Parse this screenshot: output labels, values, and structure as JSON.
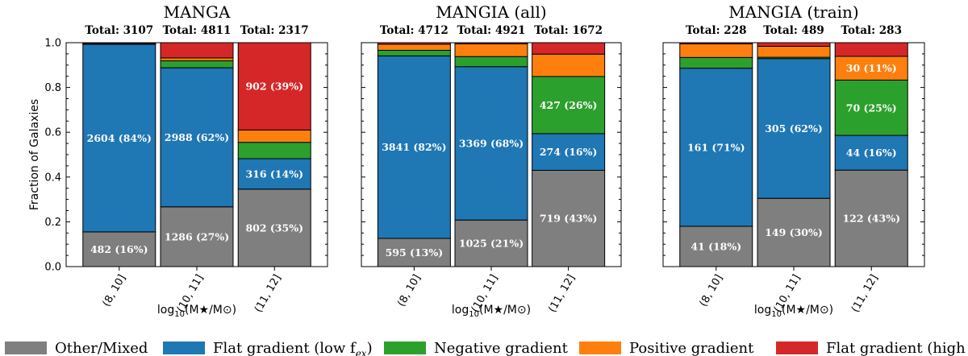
{
  "chart_data": [
    {
      "type": "bar",
      "stacked": true,
      "title": "MANGA",
      "ylabel": "Fraction of Galaxies",
      "xlabel": "log10(M★/M⊙)",
      "ylim": [
        0,
        1
      ],
      "yticks": [
        "0.0",
        "0.2",
        "0.4",
        "0.6",
        "0.8",
        "1.0"
      ],
      "categories": [
        "(8, 10]",
        "(10, 11]",
        "(11, 12]"
      ],
      "totals": [
        "Total: 3107",
        "Total: 4811",
        "Total: 2317"
      ],
      "series": [
        {
          "name": "Other/Mixed",
          "values": [
            0.155,
            0.267,
            0.346
          ],
          "labels": [
            "482 (16%)",
            "1286 (27%)",
            "802 (35%)"
          ]
        },
        {
          "name": "Flat gradient (low f_ex)",
          "values": [
            0.838,
            0.621,
            0.136
          ],
          "labels": [
            "2604 (84%)",
            "2988 (62%)",
            "316 (14%)"
          ]
        },
        {
          "name": "Negative gradient",
          "values": [
            0.002,
            0.031,
            0.073
          ],
          "labels": [
            "",
            "",
            ""
          ]
        },
        {
          "name": "Positive gradient",
          "values": [
            0.001,
            0.013,
            0.055
          ],
          "labels": [
            "",
            "",
            ""
          ]
        },
        {
          "name": "Flat gradient (high f_ex)",
          "values": [
            0.004,
            0.068,
            0.39
          ],
          "labels": [
            "",
            "",
            "902 (39%)"
          ]
        }
      ]
    },
    {
      "type": "bar",
      "stacked": true,
      "title": "MANGIA (all)",
      "xlabel": "log10(M★/M⊙)",
      "ylim": [
        0,
        1
      ],
      "categories": [
        "(8, 10]",
        "(10, 11]",
        "(11, 12]"
      ],
      "totals": [
        "Total: 4712",
        "Total: 4921",
        "Total: 1672"
      ],
      "series": [
        {
          "name": "Other/Mixed",
          "values": [
            0.126,
            0.208,
            0.43
          ],
          "labels": [
            "595 (13%)",
            "1025 (21%)",
            "719 (43%)"
          ]
        },
        {
          "name": "Flat gradient (low f_ex)",
          "values": [
            0.815,
            0.685,
            0.164
          ],
          "labels": [
            "3841 (82%)",
            "3369 (68%)",
            "274 (16%)"
          ]
        },
        {
          "name": "Negative gradient",
          "values": [
            0.025,
            0.045,
            0.255
          ],
          "labels": [
            "",
            "",
            "427 (26%)"
          ]
        },
        {
          "name": "Positive gradient",
          "values": [
            0.027,
            0.057,
            0.1
          ],
          "labels": [
            "",
            "",
            ""
          ]
        },
        {
          "name": "Flat gradient (high f_ex)",
          "values": [
            0.007,
            0.005,
            0.051
          ],
          "labels": [
            "",
            "",
            ""
          ]
        }
      ]
    },
    {
      "type": "bar",
      "stacked": true,
      "title": "MANGIA (train)",
      "xlabel": "log10(M★/M⊙)",
      "ylim": [
        0,
        1
      ],
      "categories": [
        "(8, 10]",
        "(10, 11]",
        "(11, 12]"
      ],
      "totals": [
        "Total: 228",
        "Total: 489",
        "Total: 283"
      ],
      "series": [
        {
          "name": "Other/Mixed",
          "values": [
            0.18,
            0.305,
            0.431
          ],
          "labels": [
            "41 (18%)",
            "149 (30%)",
            "122 (43%)"
          ]
        },
        {
          "name": "Flat gradient (low f_ex)",
          "values": [
            0.706,
            0.624,
            0.155
          ],
          "labels": [
            "161 (71%)",
            "305 (62%)",
            "44 (16%)"
          ]
        },
        {
          "name": "Negative gradient",
          "values": [
            0.048,
            0.006,
            0.247
          ],
          "labels": [
            "",
            "",
            "70 (25%)"
          ]
        },
        {
          "name": "Positive gradient",
          "values": [
            0.061,
            0.049,
            0.106
          ],
          "labels": [
            "",
            "",
            "30 (11%)"
          ]
        },
        {
          "name": "Flat gradient (high f_ex)",
          "values": [
            0.005,
            0.016,
            0.061
          ],
          "labels": [
            "",
            "",
            ""
          ]
        }
      ]
    }
  ],
  "legend": [
    {
      "name": "Other/Mixed",
      "color": "#7f7f7f",
      "label": "Other/Mixed",
      "sub": ""
    },
    {
      "name": "Flat gradient (low f_ex)",
      "color": "#1f77b4",
      "label": "Flat gradient (low f",
      "sub": "ex",
      "close": ")"
    },
    {
      "name": "Negative gradient",
      "color": "#2ca02c",
      "label": "Negative gradient",
      "sub": ""
    },
    {
      "name": "Positive gradient",
      "color": "#ff7f0e",
      "label": "Positive gradient",
      "sub": ""
    },
    {
      "name": "Flat gradient (high f_ex)",
      "color": "#d62728",
      "label": "Flat gradient (high f",
      "sub": "ex",
      "close": ")"
    }
  ],
  "colors": [
    "#7f7f7f",
    "#1f77b4",
    "#2ca02c",
    "#ff7f0e",
    "#d62728"
  ]
}
